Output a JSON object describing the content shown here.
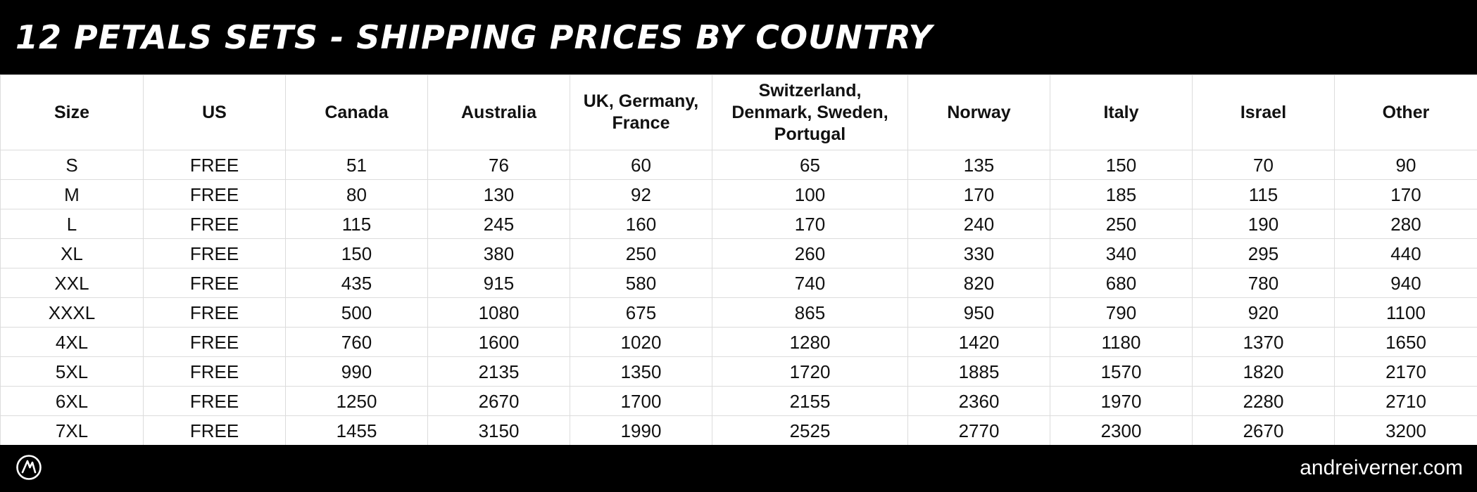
{
  "header": {
    "title": "12 Petals Sets - Shipping Prices by Country"
  },
  "table": {
    "columns": [
      "Size",
      "US",
      "Canada",
      "Australia",
      "UK, Germany, France",
      "Switzerland, Denmark, Sweden, Portugal",
      "Norway",
      "Italy",
      "Israel",
      "Other"
    ],
    "rows": [
      [
        "S",
        "FREE",
        "51",
        "76",
        "60",
        "65",
        "135",
        "150",
        "70",
        "90"
      ],
      [
        "M",
        "FREE",
        "80",
        "130",
        "92",
        "100",
        "170",
        "185",
        "115",
        "170"
      ],
      [
        "L",
        "FREE",
        "115",
        "245",
        "160",
        "170",
        "240",
        "250",
        "190",
        "280"
      ],
      [
        "XL",
        "FREE",
        "150",
        "380",
        "250",
        "260",
        "330",
        "340",
        "295",
        "440"
      ],
      [
        "XXL",
        "FREE",
        "435",
        "915",
        "580",
        "740",
        "820",
        "680",
        "780",
        "940"
      ],
      [
        "XXXL",
        "FREE",
        "500",
        "1080",
        "675",
        "865",
        "950",
        "790",
        "920",
        "1100"
      ],
      [
        "4XL",
        "FREE",
        "760",
        "1600",
        "1020",
        "1280",
        "1420",
        "1180",
        "1370",
        "1650"
      ],
      [
        "5XL",
        "FREE",
        "990",
        "2135",
        "1350",
        "1720",
        "1885",
        "1570",
        "1820",
        "2170"
      ],
      [
        "6XL",
        "FREE",
        "1250",
        "2670",
        "1700",
        "2155",
        "2360",
        "1970",
        "2280",
        "2710"
      ],
      [
        "7XL",
        "FREE",
        "1455",
        "3150",
        "1990",
        "2525",
        "2770",
        "2300",
        "2670",
        "3200"
      ]
    ]
  },
  "footer": {
    "logo_icon": "av-monogram-icon",
    "website": "andreiverner.com"
  },
  "colors": {
    "band_background": "#000000",
    "band_text": "#ffffff",
    "table_background": "#ffffff",
    "table_text": "#111111",
    "grid_line": "#dcdcdc"
  }
}
